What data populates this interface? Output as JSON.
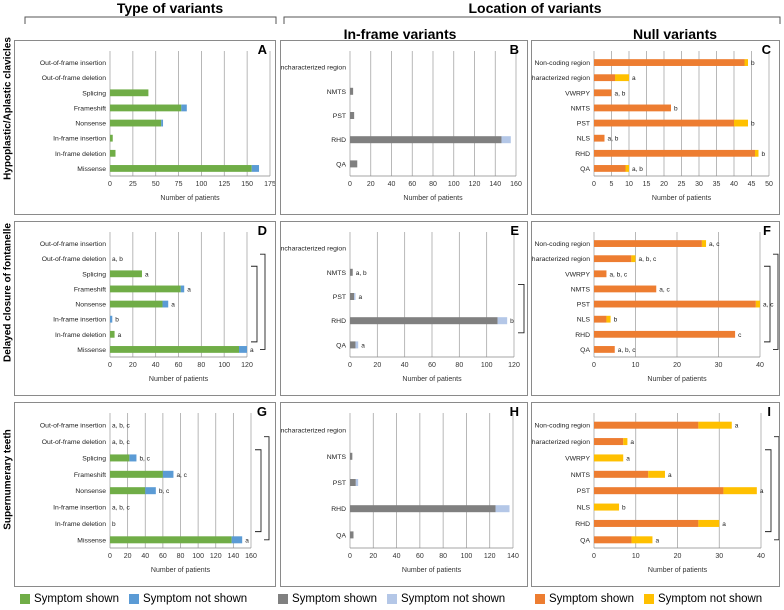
{
  "headers": {
    "type_of_variants": "Type of variants",
    "location_of_variants": "Location of variants",
    "in_frame_variants": "In-frame variants",
    "null_variants": "Null variants"
  },
  "row_labels": [
    "Hypoplastic/Aplastic clavicles",
    "Delayed closure of fontanelle",
    "Supernumerary teeth"
  ],
  "legend": [
    {
      "label": "Symptom shown",
      "color": "#70ad47"
    },
    {
      "label": "Symptom not shown",
      "color": "#5b9bd5"
    },
    {
      "label": "Symptom shown",
      "color": "#808080"
    },
    {
      "label": "Symptom not shown",
      "color": "#b4c7e7"
    },
    {
      "label": "Symptom shown",
      "color": "#ed7d31"
    },
    {
      "label": "Symptom not shown",
      "color": "#ffc000"
    }
  ],
  "colors": {
    "type_shown": "#70ad47",
    "type_not_shown": "#5b9bd5",
    "inframe_shown": "#808080",
    "inframe_not_shown": "#b4c7e7",
    "null_shown": "#ed7d31",
    "null_not_shown": "#ffc000",
    "gridline": "#a6a6a6"
  },
  "chart_data": [
    {
      "panel": "A",
      "type": "bar",
      "orientation": "horizontal",
      "stacked": true,
      "categories": [
        "Out-of-frame insertion",
        "Out-of-frame deletion",
        "Splicing",
        "Frameshift",
        "Nonsense",
        "In-frame insertion",
        "In-frame deletion",
        "Missense"
      ],
      "series": [
        {
          "name": "Symptom shown",
          "values": [
            0,
            0,
            42,
            78,
            56,
            3,
            6,
            155
          ]
        },
        {
          "name": "Symptom not shown",
          "values": [
            0,
            0,
            0,
            6,
            2,
            0,
            0,
            8
          ]
        }
      ],
      "annotations": [
        "",
        "",
        "",
        "",
        "",
        "",
        "",
        ""
      ],
      "xlabel": "Number of patients",
      "xlim": [
        0,
        175
      ],
      "xticks": [
        0,
        25,
        50,
        75,
        100,
        125,
        150,
        175
      ]
    },
    {
      "panel": "B",
      "type": "bar",
      "orientation": "horizontal",
      "stacked": true,
      "categories": [
        "Uncharacterized region",
        "NMTS",
        "PST",
        "RHD",
        "QA"
      ],
      "series": [
        {
          "name": "Symptom shown",
          "values": [
            0,
            3,
            4,
            146,
            7
          ]
        },
        {
          "name": "Symptom not shown",
          "values": [
            0,
            0,
            0,
            9,
            0
          ]
        }
      ],
      "annotations": [
        "",
        "",
        "",
        "",
        ""
      ],
      "xlabel": "Number of patients",
      "xlim": [
        0,
        160
      ],
      "xticks": [
        0,
        20,
        40,
        60,
        80,
        100,
        120,
        140,
        160
      ]
    },
    {
      "panel": "C",
      "type": "bar",
      "orientation": "horizontal",
      "stacked": true,
      "categories": [
        "Non-coding region",
        "Uncharacterized region",
        "VWRPY",
        "NMTS",
        "PST",
        "NLS",
        "RHD",
        "QA"
      ],
      "series": [
        {
          "name": "Symptom shown",
          "values": [
            43,
            6,
            5,
            22,
            40,
            3,
            46,
            9
          ]
        },
        {
          "name": "Symptom not shown",
          "values": [
            1,
            4,
            0,
            0,
            4,
            0,
            1,
            1
          ]
        }
      ],
      "annotations": [
        "b",
        "a",
        "a, b",
        "b",
        "b",
        "a, b",
        "b",
        "a, b"
      ],
      "xlabel": "Number of patients",
      "xlim": [
        0,
        50
      ],
      "xticks": [
        0,
        5,
        10,
        15,
        20,
        25,
        30,
        35,
        40,
        45,
        50
      ]
    },
    {
      "panel": "D",
      "type": "bar",
      "orientation": "horizontal",
      "stacked": true,
      "categories": [
        "Out-of-frame insertion",
        "Out-of-frame deletion",
        "Splicing",
        "Frameshift",
        "Nonsense",
        "In-frame insertion",
        "In-frame deletion",
        "Missense"
      ],
      "series": [
        {
          "name": "Symptom shown",
          "values": [
            0,
            0,
            28,
            62,
            46,
            0,
            4,
            113
          ]
        },
        {
          "name": "Symptom not shown",
          "values": [
            0,
            0,
            0,
            3,
            5,
            2,
            0,
            7
          ]
        }
      ],
      "annotations": [
        "",
        "a, b",
        "a",
        "a",
        "a",
        "b",
        "a",
        "a"
      ],
      "xlabel": "Number of patients",
      "xlim": [
        0,
        120
      ],
      "xticks": [
        0,
        20,
        40,
        60,
        80,
        100,
        120
      ]
    },
    {
      "panel": "E",
      "type": "bar",
      "orientation": "horizontal",
      "stacked": true,
      "categories": [
        "Uncharacterized region",
        "NMTS",
        "PST",
        "RHD",
        "QA"
      ],
      "series": [
        {
          "name": "Symptom shown",
          "values": [
            0,
            2,
            3,
            108,
            4
          ]
        },
        {
          "name": "Symptom not shown",
          "values": [
            0,
            0,
            1,
            7,
            2
          ]
        }
      ],
      "annotations": [
        "",
        "a, b",
        "a",
        "b",
        "a"
      ],
      "xlabel": "Number of patients",
      "xlim": [
        0,
        120
      ],
      "xticks": [
        0,
        20,
        40,
        60,
        80,
        100,
        120
      ]
    },
    {
      "panel": "F",
      "type": "bar",
      "orientation": "horizontal",
      "stacked": true,
      "categories": [
        "Non-coding region",
        "Uncharacterized region",
        "VWRPY",
        "NMTS",
        "PST",
        "NLS",
        "RHD",
        "QA"
      ],
      "series": [
        {
          "name": "Symptom shown",
          "values": [
            26,
            9,
            3,
            15,
            39,
            3,
            34,
            5
          ]
        },
        {
          "name": "Symptom not shown",
          "values": [
            1,
            1,
            0,
            0,
            1,
            1,
            0,
            0
          ]
        }
      ],
      "annotations": [
        "a, c",
        "a, b, c",
        "a, b, c",
        "a, c",
        "a, c",
        "b",
        "c",
        "a, b, c"
      ],
      "xlabel": "Number of patients",
      "xlim": [
        0,
        40
      ],
      "xticks": [
        0,
        10,
        20,
        30,
        40
      ]
    },
    {
      "panel": "G",
      "type": "bar",
      "orientation": "horizontal",
      "stacked": true,
      "categories": [
        "Out-of-frame insertion",
        "Out-of-frame deletion",
        "Splicing",
        "Frameshift",
        "Nonsense",
        "In-frame insertion",
        "In-frame deletion",
        "Missense"
      ],
      "series": [
        {
          "name": "Symptom shown",
          "values": [
            0,
            0,
            22,
            60,
            40,
            0,
            0,
            138
          ]
        },
        {
          "name": "Symptom not shown",
          "values": [
            0,
            0,
            8,
            12,
            12,
            0,
            0,
            12
          ]
        }
      ],
      "annotations": [
        "a, b, c",
        "a, b, c",
        "b, c",
        "a, c",
        "b, c",
        "a, b, c",
        "b",
        "a"
      ],
      "xlabel": "Number of patients",
      "xlim": [
        0,
        160
      ],
      "xticks": [
        0,
        20,
        40,
        60,
        80,
        100,
        120,
        140,
        160
      ]
    },
    {
      "panel": "H",
      "type": "bar",
      "orientation": "horizontal",
      "stacked": true,
      "categories": [
        "Uncharacterized region",
        "NMTS",
        "PST",
        "RHD",
        "QA"
      ],
      "series": [
        {
          "name": "Symptom shown",
          "values": [
            0,
            2,
            5,
            125,
            3
          ]
        },
        {
          "name": "Symptom not shown",
          "values": [
            0,
            0,
            2,
            12,
            0
          ]
        }
      ],
      "annotations": [
        "",
        "",
        "",
        "",
        ""
      ],
      "xlabel": "Number of patients",
      "xlim": [
        0,
        140
      ],
      "xticks": [
        0,
        20,
        40,
        60,
        80,
        100,
        120,
        140
      ]
    },
    {
      "panel": "I",
      "type": "bar",
      "orientation": "horizontal",
      "stacked": true,
      "categories": [
        "Non-coding region",
        "Uncharacterized region",
        "VWRPY",
        "NMTS",
        "PST",
        "NLS",
        "RHD",
        "QA"
      ],
      "series": [
        {
          "name": "Symptom shown",
          "values": [
            25,
            7,
            0,
            13,
            31,
            0,
            25,
            9
          ]
        },
        {
          "name": "Symptom not shown",
          "values": [
            8,
            1,
            7,
            4,
            8,
            6,
            5,
            5
          ]
        }
      ],
      "annotations": [
        "a",
        "a",
        "a",
        "a",
        "a",
        "b",
        "a",
        "a"
      ],
      "xlabel": "Number of patients",
      "xlim": [
        0,
        40
      ],
      "xticks": [
        0,
        10,
        20,
        30,
        40
      ]
    }
  ]
}
